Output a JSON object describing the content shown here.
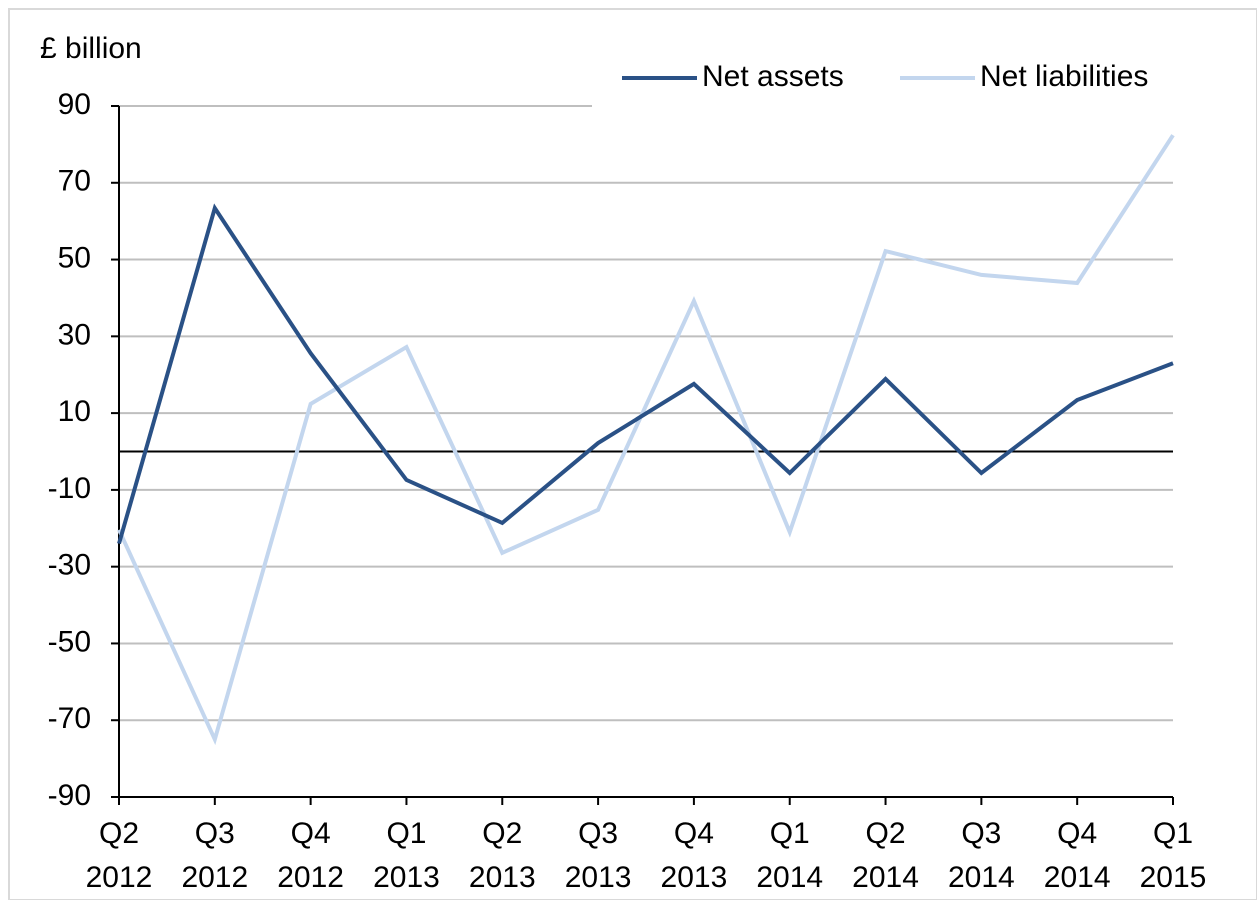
{
  "chart_data": {
    "type": "line",
    "y_label": "£ billion",
    "categories": [
      [
        "Q2",
        "2012"
      ],
      [
        "Q3",
        "2012"
      ],
      [
        "Q4",
        "2012"
      ],
      [
        "Q1",
        "2013"
      ],
      [
        "Q2",
        "2013"
      ],
      [
        "Q3",
        "2013"
      ],
      [
        "Q4",
        "2013"
      ],
      [
        "Q1",
        "2014"
      ],
      [
        "Q2",
        "2014"
      ],
      [
        "Q3",
        "2014"
      ],
      [
        "Q4",
        "2014"
      ],
      [
        "Q1",
        "2015"
      ]
    ],
    "series": [
      {
        "name": "Net assets",
        "color": "#2a5186",
        "values": [
          -24,
          63.4,
          25.6,
          -7.4,
          -18.6,
          2.2,
          17.6,
          -5.6,
          18.9,
          -5.6,
          13.4,
          23
        ]
      },
      {
        "name": "Net liabilities",
        "color": "#c3d6ee",
        "values": [
          -20.4,
          -75,
          12.4,
          27.2,
          -26.4,
          -15.2,
          39.2,
          -21,
          52.2,
          46,
          43.9,
          82.4
        ]
      }
    ],
    "ylim": [
      -90,
      90
    ],
    "yticks": [
      -90,
      -70,
      -50,
      -30,
      -10,
      10,
      30,
      50,
      70,
      90
    ],
    "grid": true
  }
}
